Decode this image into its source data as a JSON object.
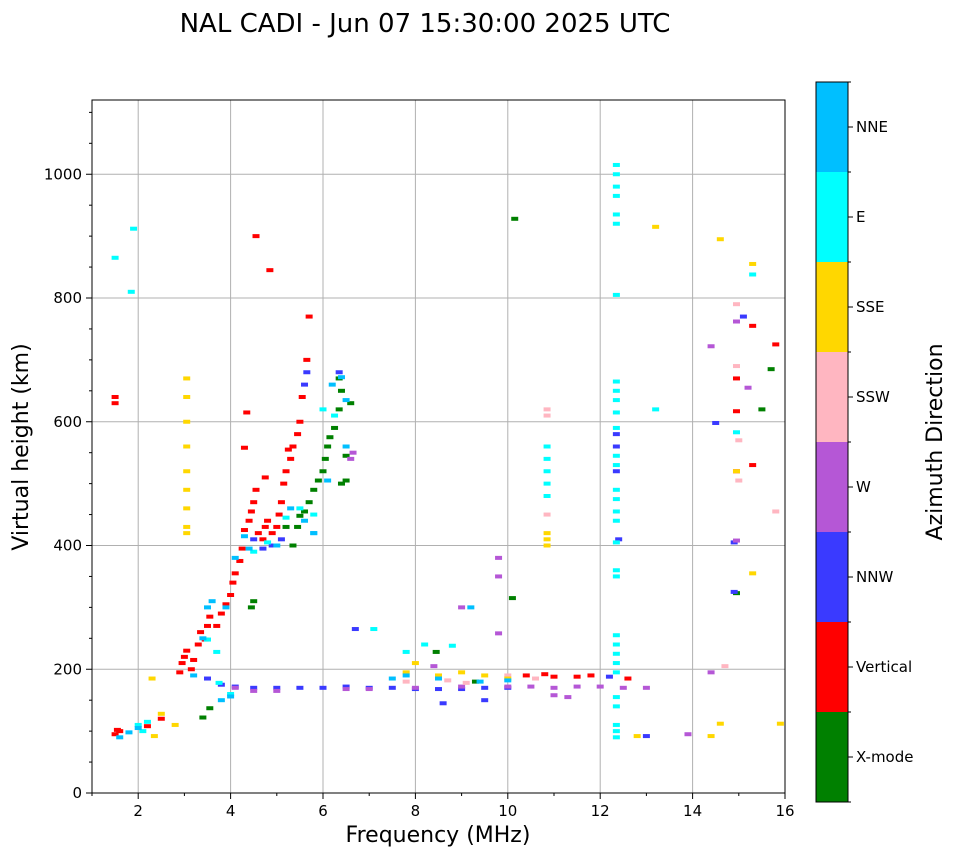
{
  "chart_data": {
    "type": "scatter",
    "title": "NAL CADI - Jun 07 15:30:00 2025 UTC",
    "xlabel": "Frequency (MHz)",
    "ylabel": "Virtual height (km)",
    "xlim": [
      1,
      16
    ],
    "ylim": [
      0,
      1120
    ],
    "x_ticks": [
      2,
      4,
      6,
      8,
      10,
      12,
      14,
      16
    ],
    "y_ticks": [
      0,
      200,
      400,
      600,
      800,
      1000
    ],
    "grid": true,
    "colorbar": {
      "title": "Azimuth Direction",
      "categories": [
        {
          "name": "X-mode",
          "color": "#008000"
        },
        {
          "name": "Vertical",
          "color": "#ff0000"
        },
        {
          "name": "NNW",
          "color": "#3a3aff"
        },
        {
          "name": "W",
          "color": "#b557d6"
        },
        {
          "name": "SSW",
          "color": "#ffb6c1"
        },
        {
          "name": "SSE",
          "color": "#ffd700"
        },
        {
          "name": "E",
          "color": "#00ffff"
        },
        {
          "name": "NNE",
          "color": "#00bfff"
        }
      ]
    },
    "series": [
      {
        "name": "X-mode",
        "points": [
          [
            3.4,
            122
          ],
          [
            3.55,
            137
          ],
          [
            4.45,
            300
          ],
          [
            4.5,
            310
          ],
          [
            5.35,
            400
          ],
          [
            5.45,
            430
          ],
          [
            5.6,
            455
          ],
          [
            5.7,
            470
          ],
          [
            5.8,
            490
          ],
          [
            5.9,
            505
          ],
          [
            6.0,
            520
          ],
          [
            6.05,
            540
          ],
          [
            6.1,
            560
          ],
          [
            6.15,
            575
          ],
          [
            6.25,
            590
          ],
          [
            6.35,
            620
          ],
          [
            6.4,
            650
          ],
          [
            6.35,
            670
          ],
          [
            6.6,
            630
          ],
          [
            6.4,
            500
          ],
          [
            6.5,
            505
          ],
          [
            6.5,
            545
          ],
          [
            5.2,
            430
          ],
          [
            5.5,
            448
          ],
          [
            8.45,
            228
          ],
          [
            9.3,
            180
          ],
          [
            10.1,
            315
          ],
          [
            10.15,
            928
          ],
          [
            15.5,
            620
          ],
          [
            15.7,
            685
          ],
          [
            14.95,
            323
          ]
        ]
      },
      {
        "name": "Vertical",
        "points": [
          [
            1.5,
            95
          ],
          [
            1.55,
            102
          ],
          [
            1.6,
            100
          ],
          [
            2.2,
            108
          ],
          [
            2.5,
            120
          ],
          [
            2.9,
            195
          ],
          [
            2.95,
            210
          ],
          [
            3.0,
            220
          ],
          [
            3.05,
            230
          ],
          [
            3.15,
            200
          ],
          [
            3.2,
            215
          ],
          [
            3.3,
            240
          ],
          [
            3.35,
            260
          ],
          [
            3.45,
            248
          ],
          [
            3.5,
            270
          ],
          [
            3.55,
            285
          ],
          [
            3.7,
            270
          ],
          [
            3.8,
            290
          ],
          [
            3.9,
            305
          ],
          [
            4.0,
            320
          ],
          [
            4.05,
            340
          ],
          [
            4.1,
            355
          ],
          [
            4.2,
            375
          ],
          [
            4.25,
            395
          ],
          [
            4.3,
            425
          ],
          [
            4.4,
            440
          ],
          [
            4.45,
            455
          ],
          [
            4.5,
            470
          ],
          [
            4.55,
            490
          ],
          [
            4.6,
            420
          ],
          [
            4.7,
            410
          ],
          [
            4.75,
            430
          ],
          [
            4.8,
            440
          ],
          [
            4.9,
            420
          ],
          [
            5.0,
            430
          ],
          [
            5.05,
            450
          ],
          [
            5.1,
            470
          ],
          [
            5.15,
            500
          ],
          [
            5.2,
            520
          ],
          [
            5.3,
            540
          ],
          [
            5.35,
            560
          ],
          [
            5.45,
            580
          ],
          [
            5.5,
            600
          ],
          [
            5.55,
            640
          ],
          [
            5.65,
            700
          ],
          [
            5.7,
            770
          ],
          [
            4.35,
            615
          ],
          [
            4.75,
            510
          ],
          [
            1.5,
            640
          ],
          [
            1.5,
            630
          ],
          [
            4.3,
            558
          ],
          [
            5.25,
            555
          ],
          [
            4.55,
            900
          ],
          [
            4.85,
            845
          ],
          [
            11.0,
            188
          ],
          [
            11.5,
            188
          ],
          [
            11.8,
            190
          ],
          [
            12.6,
            185
          ],
          [
            10.4,
            190
          ],
          [
            10.8,
            192
          ],
          [
            14.95,
            670
          ],
          [
            14.95,
            617
          ],
          [
            14.95,
            520
          ],
          [
            15.3,
            755
          ],
          [
            15.3,
            530
          ],
          [
            15.8,
            725
          ]
        ]
      },
      {
        "name": "NNW",
        "points": [
          [
            3.5,
            185
          ],
          [
            3.8,
            175
          ],
          [
            4.1,
            172
          ],
          [
            4.5,
            170
          ],
          [
            5.0,
            170
          ],
          [
            5.5,
            170
          ],
          [
            6.0,
            170
          ],
          [
            6.5,
            172
          ],
          [
            7.0,
            170
          ],
          [
            7.5,
            170
          ],
          [
            8.0,
            168
          ],
          [
            8.5,
            168
          ],
          [
            9.0,
            168
          ],
          [
            9.5,
            170
          ],
          [
            10.0,
            170
          ],
          [
            5.6,
            660
          ],
          [
            5.65,
            680
          ],
          [
            6.35,
            680
          ],
          [
            4.5,
            410
          ],
          [
            4.7,
            395
          ],
          [
            4.9,
            400
          ],
          [
            5.1,
            410
          ],
          [
            6.7,
            265
          ],
          [
            8.6,
            145
          ],
          [
            9.5,
            150
          ],
          [
            12.35,
            560
          ],
          [
            12.4,
            410
          ],
          [
            12.35,
            520
          ],
          [
            12.35,
            580
          ],
          [
            13.0,
            92
          ],
          [
            14.5,
            598
          ],
          [
            14.9,
            405
          ],
          [
            15.1,
            770
          ],
          [
            14.9,
            325
          ],
          [
            12.2,
            188
          ]
        ]
      },
      {
        "name": "W",
        "points": [
          [
            4.1,
            170
          ],
          [
            4.5,
            165
          ],
          [
            5.0,
            165
          ],
          [
            6.5,
            168
          ],
          [
            7.0,
            168
          ],
          [
            8.0,
            170
          ],
          [
            9.0,
            172
          ],
          [
            10.0,
            172
          ],
          [
            10.5,
            172
          ],
          [
            11.0,
            170
          ],
          [
            11.5,
            172
          ],
          [
            12.0,
            172
          ],
          [
            12.5,
            170
          ],
          [
            13.0,
            170
          ],
          [
            9.0,
            300
          ],
          [
            9.8,
            380
          ],
          [
            9.8,
            350
          ],
          [
            9.8,
            258
          ],
          [
            13.9,
            95
          ],
          [
            14.4,
            195
          ],
          [
            15.2,
            655
          ],
          [
            14.4,
            722
          ],
          [
            14.95,
            408
          ],
          [
            14.95,
            762
          ],
          [
            8.4,
            205
          ],
          [
            6.65,
            550
          ],
          [
            6.6,
            540
          ],
          [
            11.0,
            158
          ],
          [
            11.3,
            155
          ]
        ]
      },
      {
        "name": "SSW",
        "points": [
          [
            10.85,
            620
          ],
          [
            10.85,
            610
          ],
          [
            10.85,
            450
          ],
          [
            14.95,
            690
          ],
          [
            14.95,
            790
          ],
          [
            15.0,
            505
          ],
          [
            15.0,
            570
          ],
          [
            14.7,
            205
          ],
          [
            15.8,
            455
          ],
          [
            7.8,
            180
          ],
          [
            8.7,
            182
          ],
          [
            9.1,
            178
          ],
          [
            10.0,
            190
          ],
          [
            10.6,
            185
          ]
        ]
      },
      {
        "name": "SSE",
        "points": [
          [
            3.05,
            670
          ],
          [
            3.05,
            640
          ],
          [
            3.05,
            600
          ],
          [
            3.05,
            560
          ],
          [
            3.05,
            520
          ],
          [
            3.05,
            490
          ],
          [
            3.05,
            460
          ],
          [
            3.05,
            430
          ],
          [
            3.05,
            420
          ],
          [
            2.3,
            185
          ],
          [
            2.35,
            92
          ],
          [
            2.5,
            128
          ],
          [
            2.8,
            110
          ],
          [
            10.85,
            420
          ],
          [
            10.85,
            410
          ],
          [
            10.85,
            400
          ],
          [
            7.8,
            195
          ],
          [
            8.0,
            210
          ],
          [
            8.5,
            190
          ],
          [
            9.0,
            195
          ],
          [
            9.5,
            190
          ],
          [
            10.0,
            185
          ],
          [
            13.2,
            915
          ],
          [
            14.6,
            895
          ],
          [
            15.3,
            855
          ],
          [
            15.3,
            355
          ],
          [
            15.9,
            112
          ],
          [
            14.6,
            112
          ],
          [
            12.8,
            92
          ],
          [
            14.95,
            520
          ],
          [
            14.4,
            92
          ]
        ]
      },
      {
        "name": "E",
        "points": [
          [
            1.5,
            865
          ],
          [
            1.85,
            810
          ],
          [
            1.9,
            912
          ],
          [
            2.0,
            110
          ],
          [
            2.1,
            100
          ],
          [
            2.2,
            115
          ],
          [
            3.5,
            248
          ],
          [
            3.7,
            228
          ],
          [
            3.75,
            178
          ],
          [
            4.0,
            160
          ],
          [
            4.5,
            390
          ],
          [
            4.8,
            405
          ],
          [
            5.2,
            445
          ],
          [
            5.5,
            460
          ],
          [
            5.8,
            450
          ],
          [
            6.0,
            620
          ],
          [
            6.25,
            610
          ],
          [
            7.1,
            265
          ],
          [
            7.8,
            228
          ],
          [
            8.2,
            240
          ],
          [
            8.8,
            238
          ],
          [
            10.85,
            560
          ],
          [
            10.85,
            540
          ],
          [
            10.85,
            520
          ],
          [
            10.85,
            500
          ],
          [
            10.85,
            480
          ],
          [
            12.35,
            1015
          ],
          [
            12.35,
            1000
          ],
          [
            12.35,
            980
          ],
          [
            12.35,
            965
          ],
          [
            12.35,
            935
          ],
          [
            12.35,
            920
          ],
          [
            12.35,
            805
          ],
          [
            12.35,
            665
          ],
          [
            12.35,
            650
          ],
          [
            12.35,
            635
          ],
          [
            12.35,
            615
          ],
          [
            12.35,
            590
          ],
          [
            12.35,
            545
          ],
          [
            12.35,
            530
          ],
          [
            12.35,
            490
          ],
          [
            12.35,
            475
          ],
          [
            12.35,
            455
          ],
          [
            12.35,
            440
          ],
          [
            12.35,
            405
          ],
          [
            12.35,
            360
          ],
          [
            12.35,
            350
          ],
          [
            12.35,
            255
          ],
          [
            12.35,
            240
          ],
          [
            12.35,
            225
          ],
          [
            12.35,
            210
          ],
          [
            12.35,
            195
          ],
          [
            12.35,
            155
          ],
          [
            12.35,
            140
          ],
          [
            12.35,
            110
          ],
          [
            12.35,
            100
          ],
          [
            12.35,
            90
          ],
          [
            13.2,
            620
          ],
          [
            14.95,
            583
          ],
          [
            15.3,
            838
          ]
        ]
      },
      {
        "name": "NNE",
        "points": [
          [
            1.6,
            90
          ],
          [
            1.8,
            98
          ],
          [
            2.0,
            105
          ],
          [
            3.2,
            190
          ],
          [
            3.4,
            250
          ],
          [
            3.5,
            300
          ],
          [
            3.6,
            310
          ],
          [
            3.9,
            300
          ],
          [
            4.1,
            380
          ],
          [
            4.3,
            415
          ],
          [
            4.4,
            395
          ],
          [
            5.0,
            400
          ],
          [
            5.3,
            460
          ],
          [
            5.6,
            440
          ],
          [
            5.8,
            420
          ],
          [
            6.2,
            660
          ],
          [
            6.4,
            672
          ],
          [
            6.5,
            560
          ],
          [
            6.1,
            505
          ],
          [
            6.5,
            635
          ],
          [
            7.5,
            185
          ],
          [
            7.8,
            190
          ],
          [
            8.5,
            185
          ],
          [
            9.2,
            300
          ],
          [
            9.4,
            180
          ],
          [
            10.0,
            182
          ],
          [
            3.8,
            150
          ],
          [
            4.0,
            156
          ],
          [
            5.8,
            420
          ]
        ]
      }
    ]
  }
}
